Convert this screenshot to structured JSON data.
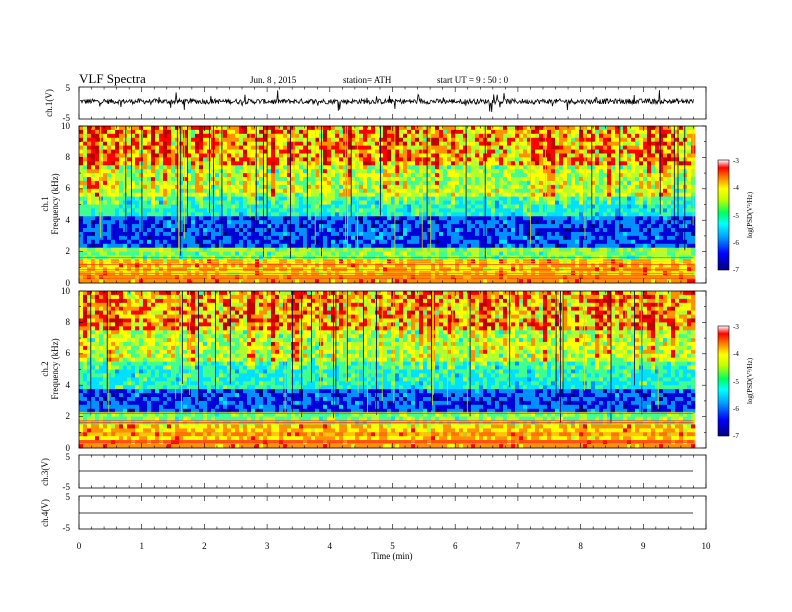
{
  "header": {
    "title": "VLF  Spectra",
    "date": "Jun. 8  , 2015",
    "station": "station= ATH",
    "start": "start  UT  =   9  : 50 : 0"
  },
  "chart_data": [
    {
      "type": "line",
      "name": "ch1-waveform",
      "ylabel": "ch.1(V)",
      "ylim": [
        -5,
        5
      ],
      "yticks": [
        "5",
        "-5"
      ],
      "xlim": [
        0,
        10
      ],
      "approx_level": 0.5
    },
    {
      "type": "heatmap",
      "name": "ch1-spectrogram",
      "ylabel_top": "ch.1",
      "ylabel": "Frequency  (kHz)",
      "ylim": [
        0,
        10
      ],
      "yticks": [
        "0",
        "2",
        "4",
        "6",
        "8",
        "10"
      ],
      "xlim": [
        0,
        10
      ],
      "data_end_min": 9.8,
      "colorbar": {
        "label": "log(PSD(V²/Hz)",
        "range": [
          -7,
          -3
        ],
        "ticks": [
          "-3",
          "-4",
          "-5",
          "-6",
          "-7"
        ]
      }
    },
    {
      "type": "heatmap",
      "name": "ch2-spectrogram",
      "ylabel_top": "ch.2",
      "ylabel": "Frequency  (kHz)",
      "ylim": [
        0,
        10
      ],
      "yticks": [
        "0",
        "2",
        "4",
        "6",
        "8",
        "10"
      ],
      "xlim": [
        0,
        10
      ],
      "data_end_min": 9.8,
      "colorbar": {
        "label": "log(PSD(V²/Hz)",
        "range": [
          -7,
          -3
        ],
        "ticks": [
          "-3",
          "-4",
          "-5",
          "-6",
          "-7"
        ]
      }
    },
    {
      "type": "line",
      "name": "ch3-waveform",
      "ylabel": "ch.3(V)",
      "ylim": [
        -5,
        5
      ],
      "yticks": [
        "5",
        "-5"
      ],
      "xlim": [
        0,
        10
      ],
      "approx_level": 0
    },
    {
      "type": "line",
      "name": "ch4-waveform",
      "ylabel": "ch.4(V)",
      "ylim": [
        -5,
        5
      ],
      "yticks": [
        "5",
        "-5"
      ],
      "xlim": [
        0,
        10
      ],
      "approx_level": 0
    }
  ],
  "xaxis": {
    "label": "Time  (min)",
    "ticks": [
      "0",
      "1",
      "2",
      "3",
      "4",
      "5",
      "6",
      "7",
      "8",
      "9",
      "10"
    ]
  },
  "palette": {
    "spectrogram": [
      "#00007a",
      "#0000d8",
      "#0090ff",
      "#00e0ff",
      "#40ff90",
      "#b0ff30",
      "#ffff00",
      "#ff9000",
      "#ff0000",
      "#c00000"
    ]
  }
}
